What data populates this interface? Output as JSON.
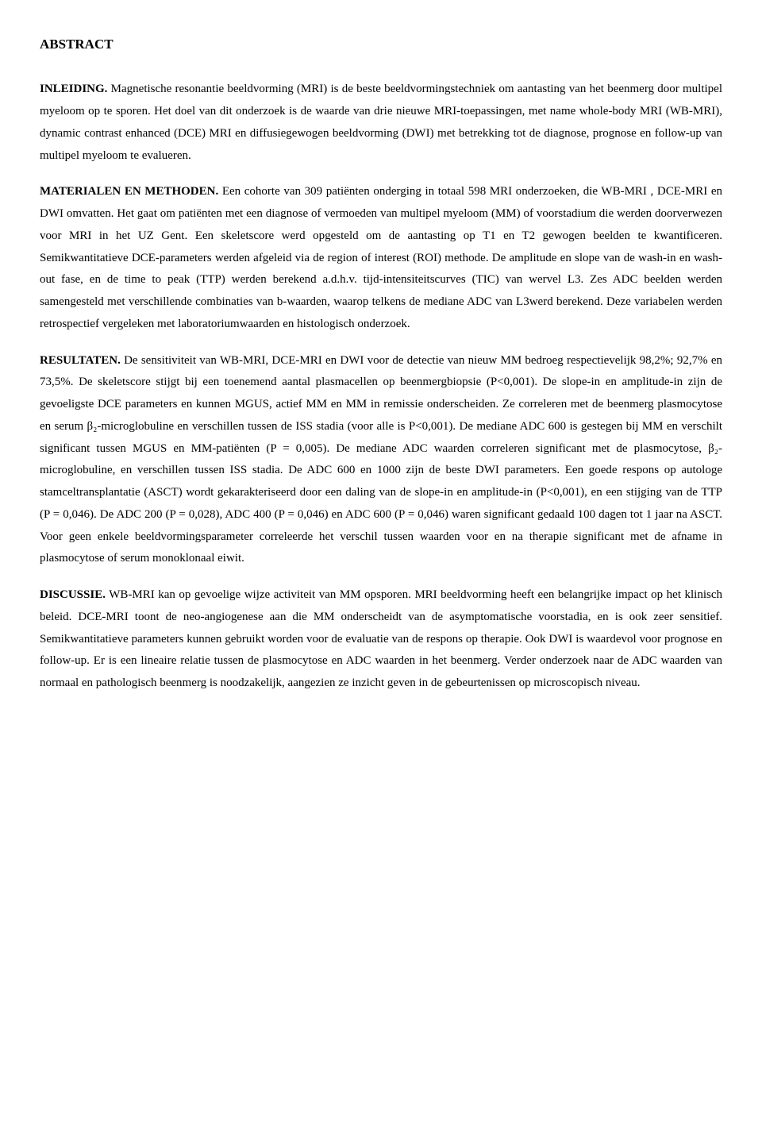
{
  "title": "ABSTRACT",
  "sections": {
    "inleiding": {
      "head": "INLEIDING.",
      "body": " Magnetische resonantie beeldvorming (MRI) is de beste beeldvormingstechniek om aantasting van het beenmerg door multipel myeloom op te sporen. Het doel van dit onderzoek is de waarde van drie nieuwe MRI-toepassingen, met name whole-body MRI (WB-MRI), dynamic contrast enhanced (DCE) MRI en diffusiegewogen beeldvorming (DWI) met betrekking tot de diagnose, prognose en follow-up van multipel myeloom te evalueren."
    },
    "materialen": {
      "head": "MATERIALEN EN METHODEN.",
      "body": " Een cohorte van 309 patiënten onderging in totaal 598 MRI onderzoeken, die WB-MRI , DCE-MRI en DWI omvatten. Het gaat om patiënten met een diagnose of vermoeden van multipel myeloom (MM) of voorstadium die werden doorverwezen voor MRI in het UZ Gent. Een skeletscore werd opgesteld om de aantasting op T1 en T2 gewogen beelden te kwantificeren. Semikwantitatieve DCE-parameters werden afgeleid via de region of interest (ROI) methode. De amplitude en slope van de wash-in en wash-out fase, en de time to peak (TTP) werden berekend a.d.h.v. tijd-intensiteitscurves (TIC) van wervel L3. Zes ADC beelden werden samengesteld met verschillende combinaties van b-waarden, waarop telkens de mediane ADC van L3werd berekend. Deze variabelen werden retrospectief vergeleken met laboratoriumwaarden en histologisch onderzoek."
    },
    "resultaten": {
      "head": "RESULTATEN.",
      "body": " De sensitiviteit van WB-MRI, DCE-MRI en DWI voor de detectie van nieuw MM bedroeg respectievelijk 98,2%; 92,7% en 73,5%. De skeletscore stijgt bij een toenemend aantal plasmacellen op beenmergbiopsie (P<0,001). De slope-in en amplitude-in zijn de gevoeligste DCE parameters en kunnen MGUS, actief MM en MM in remissie onderscheiden. Ze correleren met de beenmerg plasmocytose en serum β₂-microglobuline en verschillen tussen de ISS stadia (voor alle is P<0,001). De mediane ADC 600 is gestegen bij MM en verschilt significant tussen MGUS en MM-patiënten (P = 0,005). De mediane ADC waarden correleren significant met de plasmocytose, β₂-microglobuline, en verschillen tussen ISS stadia. De ADC 600 en 1000 zijn de beste DWI parameters. Een goede respons op autologe stamceltransplantatie (ASCT) wordt gekarakteriseerd door een daling van de slope-in en amplitude-in (P<0,001), en een stijging van de TTP (P = 0,046). De ADC 200 (P = 0,028), ADC 400  (P = 0,046) en ADC 600 (P = 0,046) waren significant gedaald 100 dagen tot 1 jaar na ASCT. Voor geen enkele beeldvormingsparameter correleerde het verschil tussen waarden voor en na therapie significant met de afname in plasmocytose of serum monoklonaal eiwit."
    },
    "discussie": {
      "head": "DISCUSSIE.",
      "body": " WB-MRI kan op gevoelige wijze activiteit van MM opsporen. MRI beeldvorming heeft een belangrijke impact op het klinisch beleid. DCE-MRI toont de neo-angiogenese aan die MM onderscheidt van de asymptomatische voorstadia, en is ook zeer sensitief. Semikwantitatieve parameters kunnen gebruikt worden voor de evaluatie van de respons op therapie. Ook DWI is waardevol voor prognose en follow-up. Er is een lineaire relatie tussen de plasmocytose en ADC waarden in het beenmerg. Verder onderzoek naar de ADC waarden van normaal en pathologisch beenmerg is noodzakelijk, aangezien ze inzicht geven in de gebeurtenissen op microscopisch niveau."
    }
  }
}
